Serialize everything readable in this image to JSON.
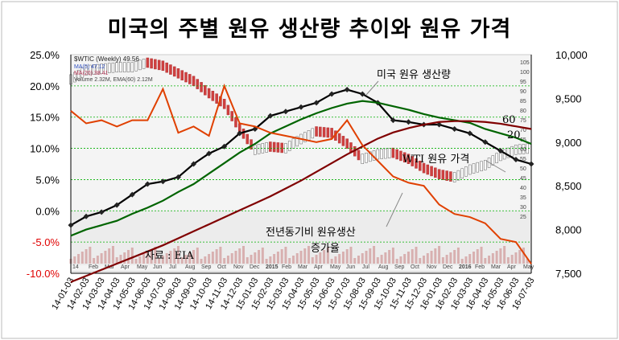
{
  "title": "미국의 주별 원유 생산량  추이와 원유 가격",
  "chart_data": {
    "type": "line",
    "title": "미국의 주별 원유 생산량  추이와 원유 가격",
    "left_axis": {
      "ticks": [
        "25.0%",
        "20.0%",
        "15.0%",
        "10.0%",
        "5.0%",
        "0.0%",
        "-5.0%",
        "-10.0%"
      ],
      "values": [
        25,
        20,
        15,
        10,
        5,
        0,
        -5,
        -10
      ],
      "range": [
        -10,
        25
      ]
    },
    "right_axis": {
      "ticks": [
        "10,000",
        "9,500",
        "9,000",
        "8,500",
        "8,000",
        "7,500"
      ],
      "values": [
        10000,
        9500,
        9000,
        8500,
        8000,
        7500
      ],
      "range": [
        7500,
        10000
      ]
    },
    "x_labels": [
      "14-01-03",
      "14-02-03",
      "14-03-03",
      "14-04-03",
      "14-05-03",
      "14-06-03",
      "14-07-03",
      "14-08-03",
      "14-09-03",
      "14-10-03",
      "14-11-03",
      "14-12-03",
      "15-01-03",
      "15-02-03",
      "15-03-03",
      "15-04-03",
      "15-05-03",
      "15-06-03",
      "15-07-03",
      "15-08-03",
      "15-09-03",
      "15-10-03",
      "15-11-03",
      "15-12-03",
      "16-01-03",
      "16-02-03",
      "16-03-03",
      "16-04-03",
      "16-05-03",
      "16-06-03",
      "16-07-03"
    ],
    "annotations": {
      "production_label": "미국 원유 생산량",
      "ma60_label": "60",
      "ma20_label": "20",
      "wti_label": "WTI 원유 가격",
      "yoy_label_line1": "전년동기비 원유생산",
      "yoy_label_line2": "증가율",
      "source": "자료 : EIA"
    },
    "inset": {
      "header": "$WTIC (Weekly) 49.56",
      "legend1": "MA(5) 47.12",
      "legend2": "MA(20) 38.41",
      "legend3": "Volume 2.32M, EMA(60) 2.12M",
      "right_ticks": [
        "105",
        "100",
        "95",
        "90",
        "85",
        "80",
        "75",
        "70",
        "65",
        "60",
        "55",
        "50",
        "45",
        "40",
        "35",
        "30",
        "25"
      ],
      "volume_ticks": [
        "35",
        "30"
      ],
      "month_labels": [
        "14",
        "Feb",
        "Mar",
        "Apr",
        "May",
        "Jun",
        "Jul",
        "Aug",
        "Sep",
        "Oct",
        "Nov",
        "Dec",
        "2015",
        "Feb",
        "Mar",
        "Apr",
        "May",
        "Jun",
        "Jul",
        "Aug",
        "Sep",
        "Oct",
        "Nov",
        "Dec",
        "2016",
        "Feb",
        "Mar",
        "Apr",
        "May"
      ]
    },
    "series": [
      {
        "name": "미국 원유 생산량",
        "axis": "right",
        "color": "#000000",
        "values": [
          8050,
          8150,
          8200,
          8280,
          8400,
          8520,
          8550,
          8600,
          8750,
          8870,
          8950,
          9100,
          9150,
          9300,
          9350,
          9400,
          9450,
          9550,
          9600,
          9550,
          9450,
          9250,
          9230,
          9200,
          9200,
          9150,
          9100,
          9000,
          8900,
          8800,
          8750
        ]
      },
      {
        "name": "20",
        "axis": "right",
        "color": "#006400",
        "values": [
          7930,
          8000,
          8050,
          8100,
          8180,
          8250,
          8330,
          8430,
          8520,
          8640,
          8760,
          8880,
          8980,
          9100,
          9180,
          9260,
          9330,
          9390,
          9440,
          9470,
          9450,
          9410,
          9370,
          9320,
          9280,
          9250,
          9220,
          9150,
          9100,
          9050,
          8980
        ]
      },
      {
        "name": "60",
        "axis": "right",
        "color": "#800000",
        "values": [
          7400,
          7470,
          7540,
          7610,
          7680,
          7750,
          7820,
          7900,
          7980,
          8060,
          8140,
          8220,
          8300,
          8380,
          8470,
          8560,
          8660,
          8760,
          8860,
          8950,
          9040,
          9110,
          9160,
          9200,
          9230,
          9240,
          9240,
          9230,
          9210,
          9180,
          9150
        ]
      },
      {
        "name": "전년동기비 원유생산 증가율",
        "axis": "left",
        "color": "#e04000",
        "values": [
          16.0,
          14.0,
          14.5,
          13.5,
          14.5,
          14.5,
          19.5,
          12.5,
          13.5,
          12.0,
          20.0,
          14.0,
          13.5,
          12.5,
          12.0,
          11.5,
          11.0,
          11.5,
          14.5,
          10.5,
          8.0,
          5.5,
          4.5,
          4.0,
          1.0,
          -0.5,
          -1.0,
          -2.0,
          -4.5,
          -5.0,
          -8.5
        ]
      },
      {
        "name": "WTI 원유 가격",
        "axis": "inset",
        "color": "#d0d0d0",
        "values": [
          94,
          100,
          101,
          102,
          102,
          105,
          103,
          98,
          93,
          85,
          78,
          62,
          48,
          50,
          49,
          55,
          60,
          59,
          52,
          42,
          45,
          46,
          42,
          36,
          32,
          30,
          35,
          38,
          44,
          48,
          49
        ]
      }
    ]
  }
}
